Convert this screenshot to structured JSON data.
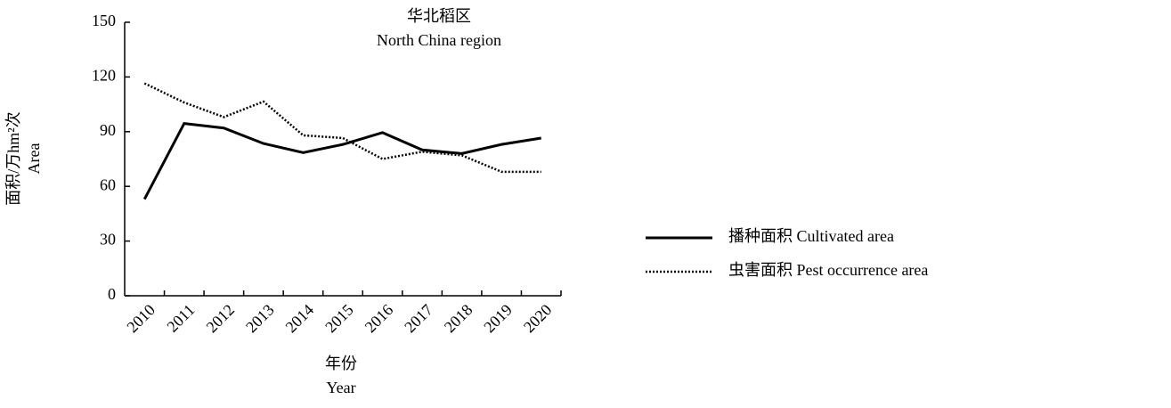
{
  "chart_data": {
    "type": "line",
    "title": "华北稻区",
    "subtitle": "North China region",
    "y_label": "面积/万hm²次",
    "y_label_en": "Area",
    "x_label": "年份",
    "x_label_en": "Year",
    "categories": [
      "2010",
      "2011",
      "2012",
      "2013",
      "2014",
      "2015",
      "2016",
      "2017",
      "2018",
      "2019",
      "2020"
    ],
    "series": [
      {
        "name": "播种面积  Cultivated area",
        "color": "#000000",
        "dash": "solid",
        "values": [
          53,
          94.5,
          92,
          83.5,
          78.5,
          83,
          89.5,
          80,
          78,
          83,
          86.5
        ]
      },
      {
        "name": "虫害面积  Pest occurrence area",
        "color": "#000000",
        "dash": "dotted",
        "values": [
          116.5,
          106,
          98,
          106.5,
          88,
          86.5,
          75,
          79,
          77,
          68,
          68
        ]
      }
    ],
    "ylim": [
      0,
      150
    ],
    "yticks": [
      0,
      30,
      60,
      90,
      120,
      150
    ],
    "grid": false,
    "legend": "right"
  }
}
